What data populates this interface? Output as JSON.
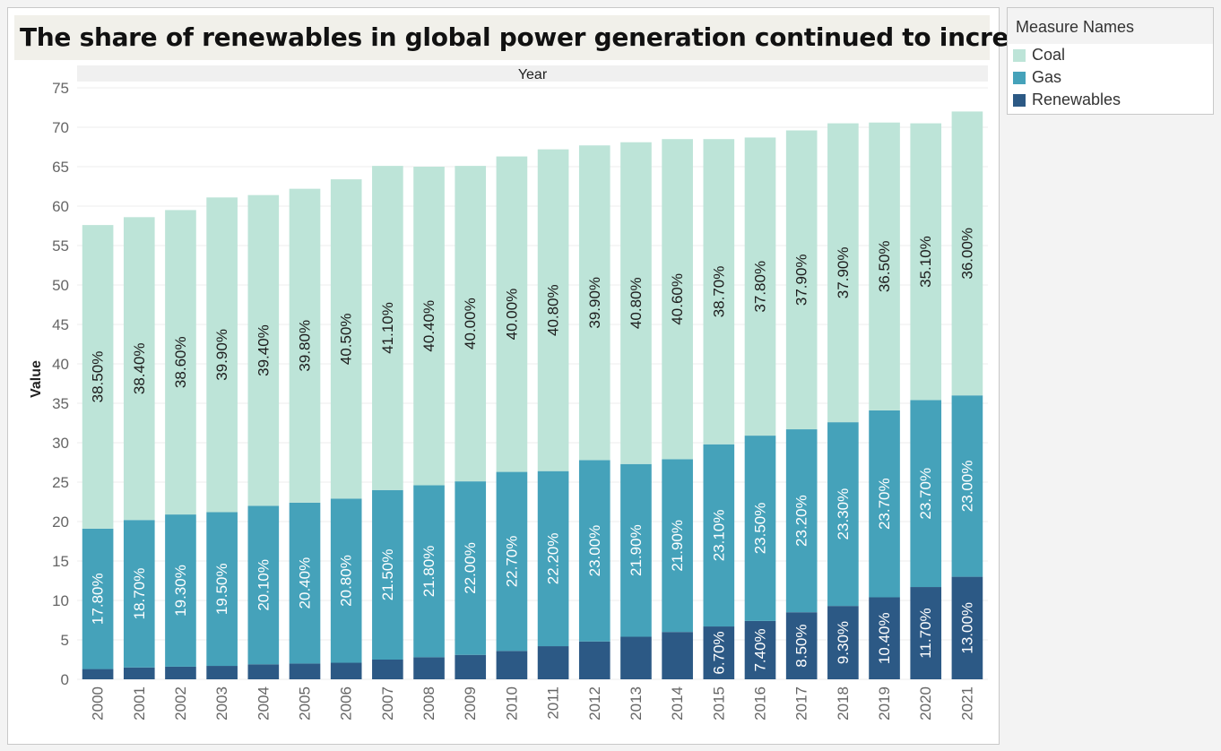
{
  "title": "The share of renewables in global power generation continued to increase",
  "legend": {
    "title": "Measure Names",
    "items": [
      {
        "label": "Coal",
        "color": "#bde4d8"
      },
      {
        "label": "Gas",
        "color": "#45a2ba"
      },
      {
        "label": "Renewables",
        "color": "#2c5985"
      }
    ]
  },
  "chart_data": {
    "type": "bar",
    "stacked": true,
    "column_header": "Year",
    "ylabel": "Value",
    "ylim": [
      0,
      75
    ],
    "yticks": [
      0,
      5,
      10,
      15,
      20,
      25,
      30,
      35,
      40,
      45,
      50,
      55,
      60,
      65,
      70,
      75
    ],
    "grid": true,
    "legend_position": "top-right",
    "categories": [
      "2000",
      "2001",
      "2002",
      "2003",
      "2004",
      "2005",
      "2006",
      "2007",
      "2008",
      "2009",
      "2010",
      "2011",
      "2012",
      "2013",
      "2014",
      "2015",
      "2016",
      "2017",
      "2018",
      "2019",
      "2020",
      "2021"
    ],
    "series": [
      {
        "name": "Renewables",
        "color": "#2c5985",
        "values": [
          1.3,
          1.5,
          1.6,
          1.7,
          1.9,
          2.0,
          2.1,
          2.5,
          2.8,
          3.1,
          3.6,
          4.2,
          4.8,
          5.4,
          6.0,
          6.7,
          7.4,
          8.5,
          9.3,
          10.4,
          11.7,
          13.0
        ],
        "labels": [
          "",
          "",
          "",
          "",
          "",
          "",
          "",
          "",
          "",
          "",
          "",
          "",
          "",
          "",
          "",
          "6.70%",
          "7.40%",
          "8.50%",
          "9.30%",
          "10.40%",
          "11.70%",
          "13.00%"
        ]
      },
      {
        "name": "Gas",
        "color": "#45a2ba",
        "values": [
          17.8,
          18.7,
          19.3,
          19.5,
          20.1,
          20.4,
          20.8,
          21.5,
          21.8,
          22.0,
          22.7,
          22.2,
          23.0,
          21.9,
          21.9,
          23.1,
          23.5,
          23.2,
          23.3,
          23.7,
          23.7,
          23.0
        ],
        "labels": [
          "17.80%",
          "18.70%",
          "19.30%",
          "19.50%",
          "20.10%",
          "20.40%",
          "20.80%",
          "21.50%",
          "21.80%",
          "22.00%",
          "22.70%",
          "22.20%",
          "23.00%",
          "21.90%",
          "21.90%",
          "23.10%",
          "23.50%",
          "23.20%",
          "23.30%",
          "23.70%",
          "23.70%",
          "23.00%"
        ]
      },
      {
        "name": "Coal",
        "color": "#bde4d8",
        "values": [
          38.5,
          38.4,
          38.6,
          39.9,
          39.4,
          39.8,
          40.5,
          41.1,
          40.4,
          40.0,
          40.0,
          40.8,
          39.9,
          40.8,
          40.6,
          38.7,
          37.8,
          37.9,
          37.9,
          36.5,
          35.1,
          36.0
        ],
        "labels": [
          "38.50%",
          "38.40%",
          "38.60%",
          "39.90%",
          "39.40%",
          "39.80%",
          "40.50%",
          "41.10%",
          "40.40%",
          "40.00%",
          "40.00%",
          "40.80%",
          "39.90%",
          "40.80%",
          "40.60%",
          "38.70%",
          "37.80%",
          "37.90%",
          "37.90%",
          "36.50%",
          "35.10%",
          "36.00%"
        ]
      }
    ]
  }
}
